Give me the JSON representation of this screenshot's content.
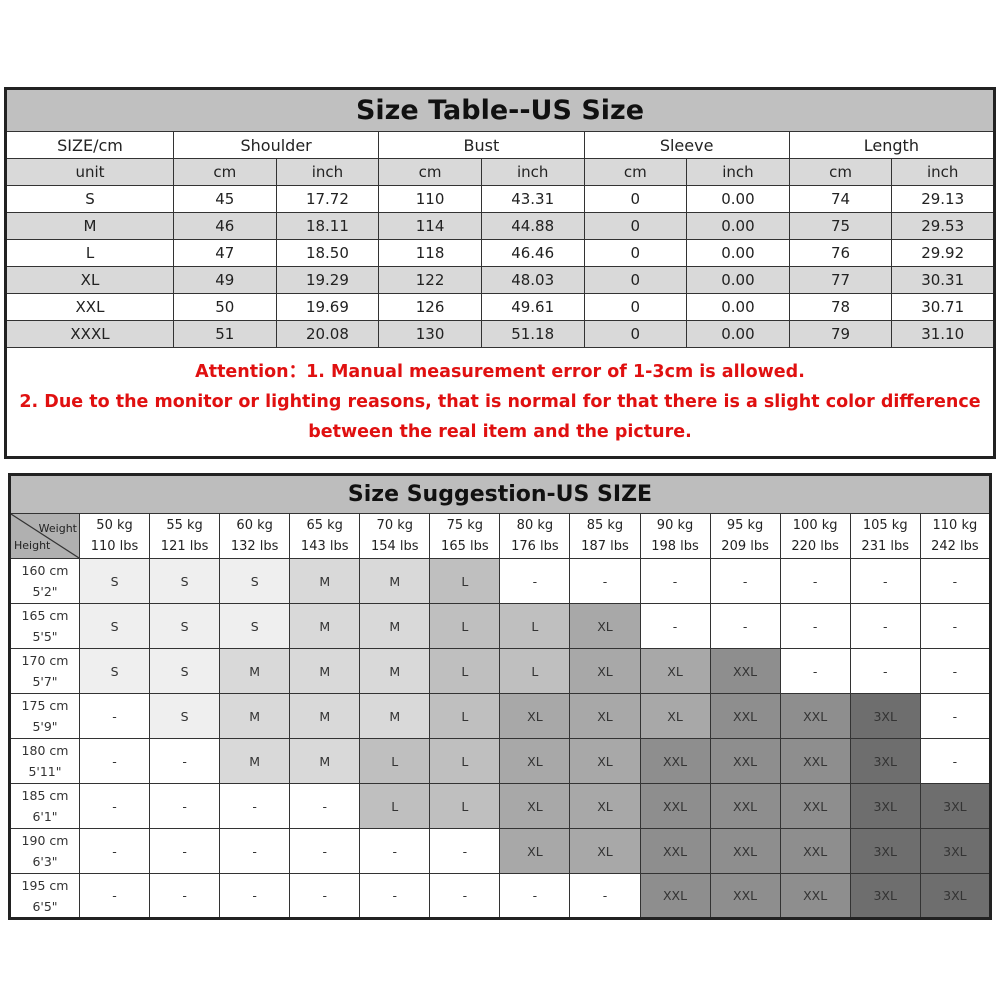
{
  "size_table": {
    "title": "Size Table--US Size",
    "header": [
      "SIZE/cm",
      "Shoulder",
      "Bust",
      "Sleeve",
      "Length"
    ],
    "units": [
      "unit",
      "cm",
      "inch",
      "cm",
      "inch",
      "cm",
      "inch",
      "cm",
      "inch"
    ],
    "rows": [
      [
        "S",
        "45",
        "17.72",
        "110",
        "43.31",
        "0",
        "0.00",
        "74",
        "29.13"
      ],
      [
        "M",
        "46",
        "18.11",
        "114",
        "44.88",
        "0",
        "0.00",
        "75",
        "29.53"
      ],
      [
        "L",
        "47",
        "18.50",
        "118",
        "46.46",
        "0",
        "0.00",
        "76",
        "29.92"
      ],
      [
        "XL",
        "49",
        "19.29",
        "122",
        "48.03",
        "0",
        "0.00",
        "77",
        "30.31"
      ],
      [
        "XXL",
        "50",
        "19.69",
        "126",
        "49.61",
        "0",
        "0.00",
        "78",
        "30.71"
      ],
      [
        "XXXL",
        "51",
        "20.08",
        "130",
        "51.18",
        "0",
        "0.00",
        "79",
        "31.10"
      ]
    ],
    "attention": [
      "Attention：1. Manual measurement error of 1-3cm is allowed.",
      "2. Due to the monitor or lighting reasons, that is normal for that there is a slight color difference",
      "between the real item and the picture."
    ],
    "attention_color": "#e01010"
  },
  "size_suggestion": {
    "title": "Size Suggestion-US SIZE",
    "corner_weight": "Weight",
    "corner_height": "Height",
    "weights": [
      [
        "50 kg",
        "110 lbs"
      ],
      [
        "55 kg",
        "121 lbs"
      ],
      [
        "60 kg",
        "132 lbs"
      ],
      [
        "65 kg",
        "143 lbs"
      ],
      [
        "70 kg",
        "154 lbs"
      ],
      [
        "75 kg",
        "165 lbs"
      ],
      [
        "80 kg",
        "176 lbs"
      ],
      [
        "85 kg",
        "187 lbs"
      ],
      [
        "90 kg",
        "198 lbs"
      ],
      [
        "95 kg",
        "209 lbs"
      ],
      [
        "100 kg",
        "220 lbs"
      ],
      [
        "105 kg",
        "231 lbs"
      ],
      [
        "110 kg",
        "242 lbs"
      ]
    ],
    "heights": [
      [
        "160 cm",
        "5'2\""
      ],
      [
        "165 cm",
        "5'5\""
      ],
      [
        "170 cm",
        "5'7\""
      ],
      [
        "175 cm",
        "5'9\""
      ],
      [
        "180 cm",
        "5'11\""
      ],
      [
        "185 cm",
        "6'1\""
      ],
      [
        "190 cm",
        "6'3\""
      ],
      [
        "195 cm",
        "6'5\""
      ]
    ],
    "grid": [
      [
        "S",
        "S",
        "S",
        "M",
        "M",
        "L",
        "-",
        "-",
        "-",
        "-",
        "-",
        "-",
        "-"
      ],
      [
        "S",
        "S",
        "S",
        "M",
        "M",
        "L",
        "L",
        "XL",
        "-",
        "-",
        "-",
        "-",
        "-"
      ],
      [
        "S",
        "S",
        "M",
        "M",
        "M",
        "L",
        "L",
        "XL",
        "XL",
        "XXL",
        "-",
        "-",
        "-"
      ],
      [
        "-",
        "S",
        "M",
        "M",
        "M",
        "L",
        "XL",
        "XL",
        "XL",
        "XXL",
        "XXL",
        "3XL",
        "-"
      ],
      [
        "-",
        "-",
        "M",
        "M",
        "L",
        "L",
        "XL",
        "XL",
        "XXL",
        "XXL",
        "XXL",
        "3XL",
        "-"
      ],
      [
        "-",
        "-",
        "-",
        "-",
        "L",
        "L",
        "XL",
        "XL",
        "XXL",
        "XXL",
        "XXL",
        "3XL",
        "3XL"
      ],
      [
        "-",
        "-",
        "-",
        "-",
        "-",
        "-",
        "XL",
        "XL",
        "XXL",
        "XXL",
        "XXL",
        "3XL",
        "3XL"
      ],
      [
        "-",
        "-",
        "-",
        "-",
        "-",
        "-",
        "-",
        "-",
        "XXL",
        "XXL",
        "XXL",
        "3XL",
        "3XL"
      ]
    ],
    "size_colors": {
      "S": "#efefef",
      "M": "#d9d9d9",
      "L": "#bfbfbf",
      "XL": "#a8a8a8",
      "XXL": "#8e8e8e",
      "3XL": "#6e6e6e",
      "-": "#ffffff"
    }
  }
}
